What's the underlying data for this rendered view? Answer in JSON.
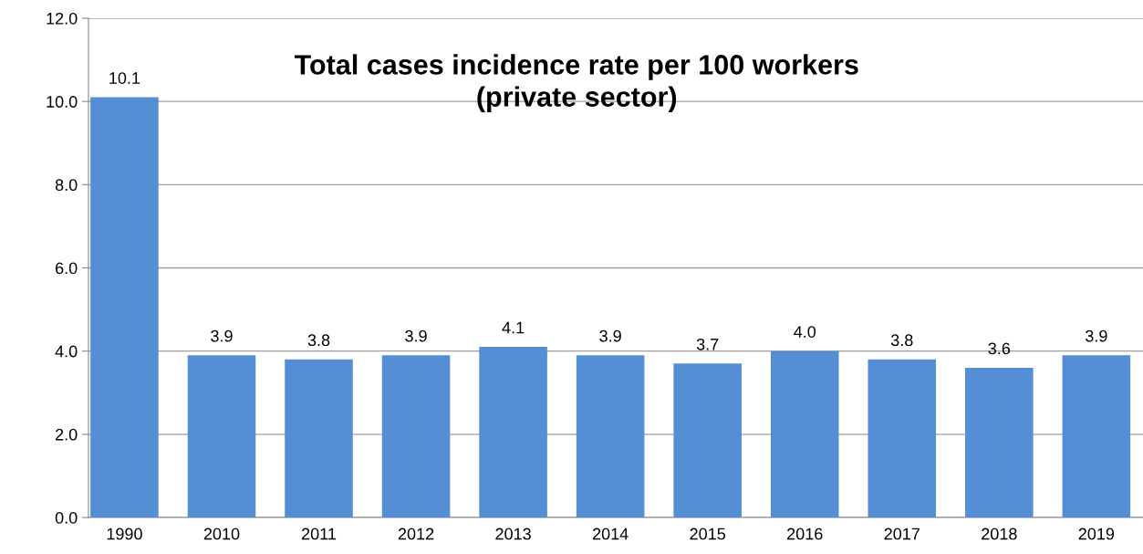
{
  "chart_data": {
    "type": "bar",
    "title": "Total cases incidence rate per 100 workers\n(private sector)",
    "categories": [
      "1990",
      "2010",
      "2011",
      "2012",
      "2013",
      "2014",
      "2015",
      "2016",
      "2017",
      "2018",
      "2019"
    ],
    "values": [
      10.1,
      3.9,
      3.8,
      3.9,
      4.1,
      3.9,
      3.7,
      4.0,
      3.8,
      3.6,
      3.9
    ],
    "color": "#558ed5",
    "ylim": [
      0,
      12
    ],
    "yticks": [
      {
        "value": 0,
        "label": "0.0"
      },
      {
        "value": 2,
        "label": "2.0"
      },
      {
        "value": 4,
        "label": "4.0"
      },
      {
        "value": 6,
        "label": "6.0"
      },
      {
        "value": 8,
        "label": "8.0"
      },
      {
        "value": 10,
        "label": "10.0"
      },
      {
        "value": 12,
        "label": "12.0"
      }
    ],
    "value_labels": [
      "10.1",
      "3.9",
      "3.8",
      "3.9",
      "4.1",
      "3.9",
      "3.7",
      "4.0",
      "3.8",
      "3.6",
      "3.9"
    ],
    "grid": "y",
    "legend": false
  }
}
